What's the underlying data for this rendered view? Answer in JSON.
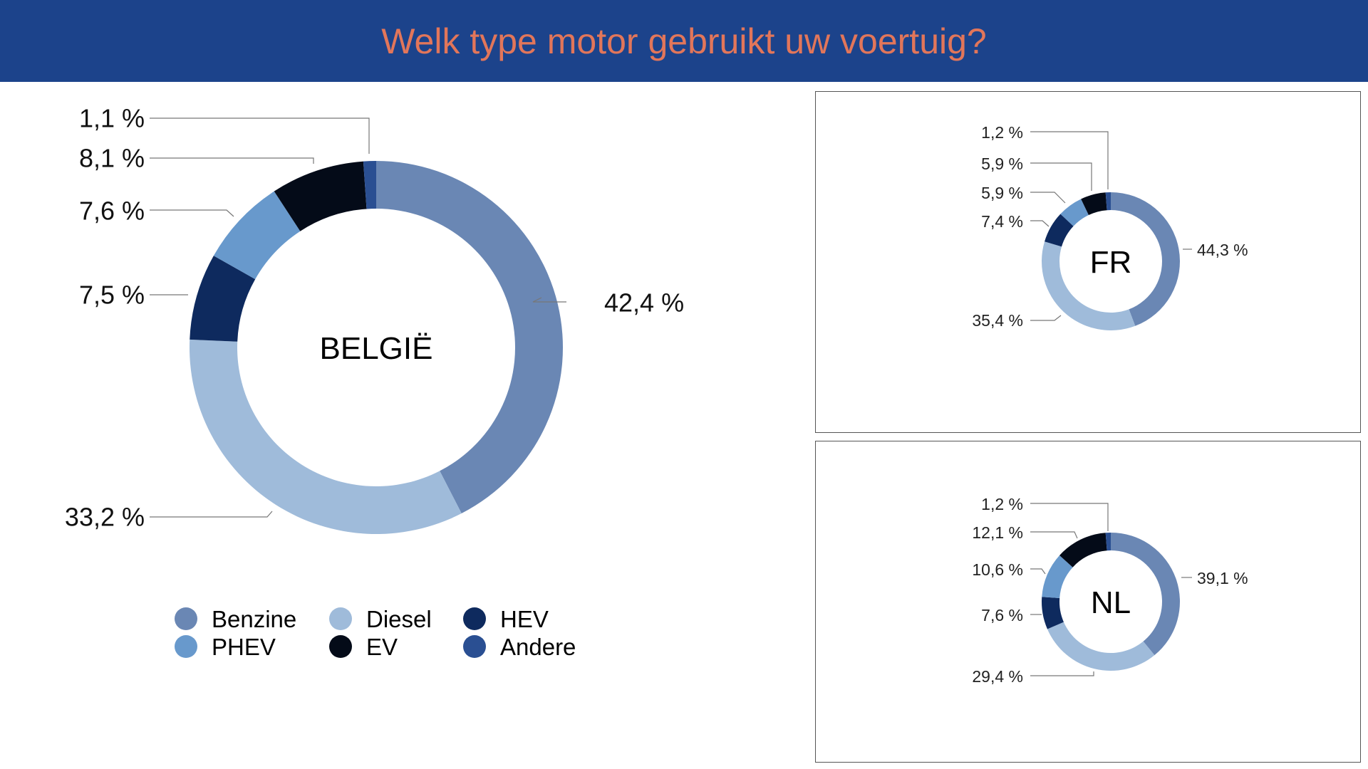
{
  "page": {
    "title": "Welk type motor gebruikt uw voertuig?"
  },
  "colors": {
    "header_bg": "#1c438b",
    "title": "#e2765a",
    "Benzine": "#6a87b4",
    "Diesel": "#9fbbda",
    "HEV": "#0e2a5e",
    "PHEV": "#6899cc",
    "EV": "#040b18",
    "Andere": "#2a4f92"
  },
  "legend": {
    "items": [
      {
        "name": "Benzine"
      },
      {
        "name": "Diesel"
      },
      {
        "name": "HEV"
      },
      {
        "name": "PHEV"
      },
      {
        "name": "EV"
      },
      {
        "name": "Andere"
      }
    ]
  },
  "chart_data": [
    {
      "type": "pie",
      "title": "BELGIË",
      "categories": [
        "Benzine",
        "Diesel",
        "HEV",
        "PHEV",
        "EV",
        "Andere"
      ],
      "values": [
        42.4,
        33.2,
        7.5,
        7.6,
        8.1,
        1.1
      ],
      "labels": [
        "42,4 %",
        "33,2 %",
        "7,5 %",
        "7,6 %",
        "8,1 %",
        "1,1 %"
      ]
    },
    {
      "type": "pie",
      "title": "FR",
      "categories": [
        "Benzine",
        "Diesel",
        "HEV",
        "PHEV",
        "EV",
        "Andere"
      ],
      "values": [
        44.3,
        35.4,
        7.4,
        5.9,
        5.9,
        1.2
      ],
      "labels": [
        "44,3 %",
        "35,4 %",
        "7,4 %",
        "5,9 %",
        "5,9 %",
        "1,2 %"
      ]
    },
    {
      "type": "pie",
      "title": "NL",
      "categories": [
        "Benzine",
        "Diesel",
        "HEV",
        "PHEV",
        "EV",
        "Andere"
      ],
      "values": [
        39.1,
        29.4,
        7.6,
        10.6,
        12.1,
        1.2
      ],
      "labels": [
        "39,1 %",
        "29,4 %",
        "7,6 %",
        "10,6 %",
        "12,1 %",
        "1,2 %"
      ]
    }
  ]
}
